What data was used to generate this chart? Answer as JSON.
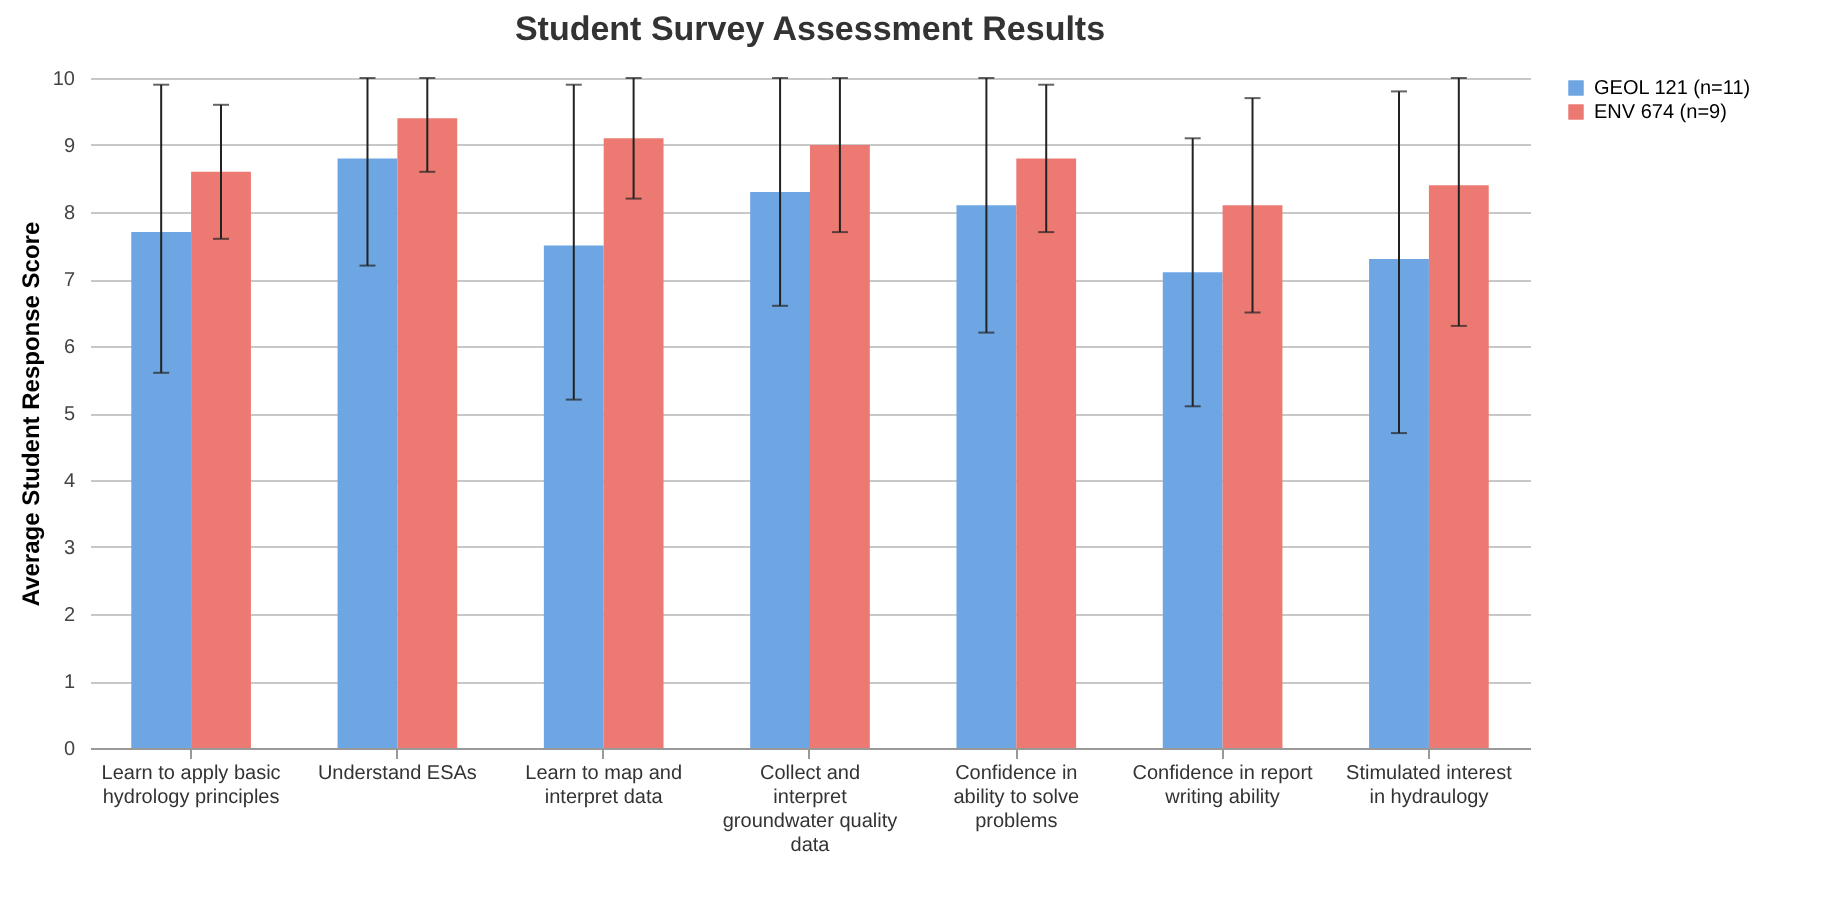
{
  "chart_data": {
    "type": "bar",
    "title": "Student Survey Assessment Results",
    "ylabel": "Average Student Response Score",
    "categories": [
      "Learn to apply basic hydrology principles",
      "Understand ESAs",
      "Learn to map and interpret data",
      "Collect and interpret groundwater quality data",
      "Confidence in ability to solve problems",
      "Confidence in report writing ability",
      "Stimulated interest in hydraulogy"
    ],
    "series": [
      {
        "name": "GEOL 121 (n=11)",
        "color": "#6ea6e4",
        "values": [
          7.7,
          8.8,
          7.5,
          8.3,
          8.1,
          7.1,
          7.3
        ],
        "errors": [
          [
            5.6,
            9.9
          ],
          [
            7.2,
            10
          ],
          [
            5.2,
            9.9
          ],
          [
            6.6,
            10
          ],
          [
            6.2,
            10
          ],
          [
            5.1,
            9.1
          ],
          [
            4.7,
            9.8
          ]
        ]
      },
      {
        "name": "ENV 674 (n=9)",
        "color": "#ec7a72",
        "values": [
          8.6,
          9.4,
          9.1,
          9.0,
          8.8,
          8.1,
          8.4
        ],
        "errors": [
          [
            7.6,
            9.6
          ],
          [
            8.6,
            10
          ],
          [
            8.2,
            10
          ],
          [
            7.7,
            10
          ],
          [
            7.7,
            9.9
          ],
          [
            6.5,
            9.7
          ],
          [
            6.3,
            10
          ]
        ]
      }
    ],
    "ylim": [
      0,
      10
    ],
    "yticks": [
      0,
      1,
      2,
      3,
      4,
      5,
      6,
      7,
      8,
      9,
      10
    ],
    "grid": "y",
    "legend": "right"
  }
}
